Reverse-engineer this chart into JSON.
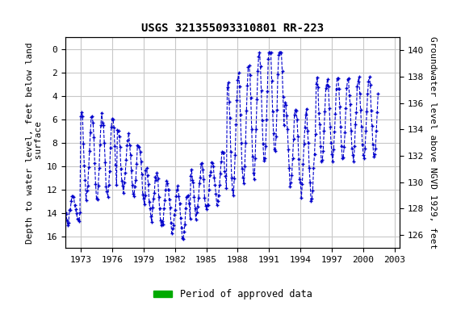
{
  "title": "USGS 321355093310801 RR-223",
  "ylabel_left": "Depth to water level, feet below land\n surface",
  "ylabel_right": "Groundwater level above NGVD 1929, feet",
  "xlim": [
    1971.5,
    2003.5
  ],
  "ylim_left": [
    17,
    -1
  ],
  "ylim_right": [
    125,
    141
  ],
  "yticks_left": [
    0,
    2,
    4,
    6,
    8,
    10,
    12,
    14,
    16
  ],
  "yticks_right": [
    126,
    128,
    130,
    132,
    134,
    136,
    138,
    140
  ],
  "xticks": [
    1973,
    1976,
    1979,
    1982,
    1985,
    1988,
    1991,
    1994,
    1997,
    2000,
    2003
  ],
  "line_color": "#0000cc",
  "marker": "+",
  "linestyle": "--",
  "background_color": "#ffffff",
  "grid_color": "#c8c8c8",
  "legend_label": "Period of approved data",
  "legend_color": "#00aa00",
  "title_fontsize": 10,
  "axis_label_fontsize": 8,
  "tick_fontsize": 8,
  "green_bar_x0": 1971.6,
  "green_bar_x1": 2001.4,
  "green_bar_x2": 2002.6,
  "green_bar_x3": 2003.4
}
